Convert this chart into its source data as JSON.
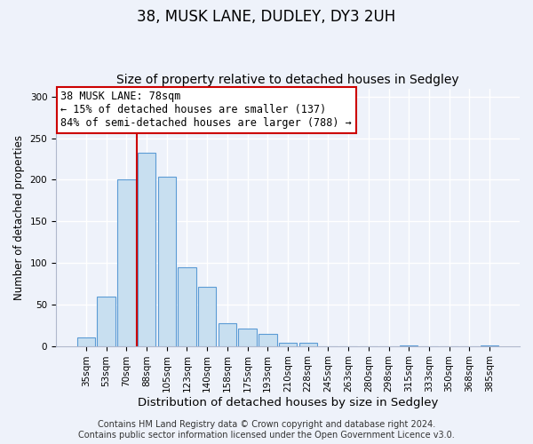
{
  "title": "38, MUSK LANE, DUDLEY, DY3 2UH",
  "subtitle": "Size of property relative to detached houses in Sedgley",
  "xlabel": "Distribution of detached houses by size in Sedgley",
  "ylabel": "Number of detached properties",
  "bar_labels": [
    "35sqm",
    "53sqm",
    "70sqm",
    "88sqm",
    "105sqm",
    "123sqm",
    "140sqm",
    "158sqm",
    "175sqm",
    "193sqm",
    "210sqm",
    "228sqm",
    "245sqm",
    "263sqm",
    "280sqm",
    "298sqm",
    "315sqm",
    "333sqm",
    "350sqm",
    "368sqm",
    "385sqm"
  ],
  "bar_values": [
    10,
    59,
    200,
    233,
    204,
    95,
    71,
    27,
    21,
    15,
    4,
    4,
    0,
    0,
    0,
    0,
    1,
    0,
    0,
    0,
    1
  ],
  "bar_color": "#c8dff0",
  "bar_edge_color": "#5b9bd5",
  "background_color": "#eef2fa",
  "grid_color": "#ffffff",
  "ylim": [
    0,
    310
  ],
  "yticks": [
    0,
    50,
    100,
    150,
    200,
    250,
    300
  ],
  "vline_color": "#cc0000",
  "vline_x": 2.5,
  "annotation_line1": "38 MUSK LANE: 78sqm",
  "annotation_line2": "← 15% of detached houses are smaller (137)",
  "annotation_line3": "84% of semi-detached houses are larger (788) →",
  "footer_line1": "Contains HM Land Registry data © Crown copyright and database right 2024.",
  "footer_line2": "Contains public sector information licensed under the Open Government Licence v3.0.",
  "title_fontsize": 12,
  "subtitle_fontsize": 10,
  "xlabel_fontsize": 9.5,
  "ylabel_fontsize": 8.5,
  "tick_fontsize": 7.5,
  "annotation_fontsize": 8.5,
  "footer_fontsize": 7
}
